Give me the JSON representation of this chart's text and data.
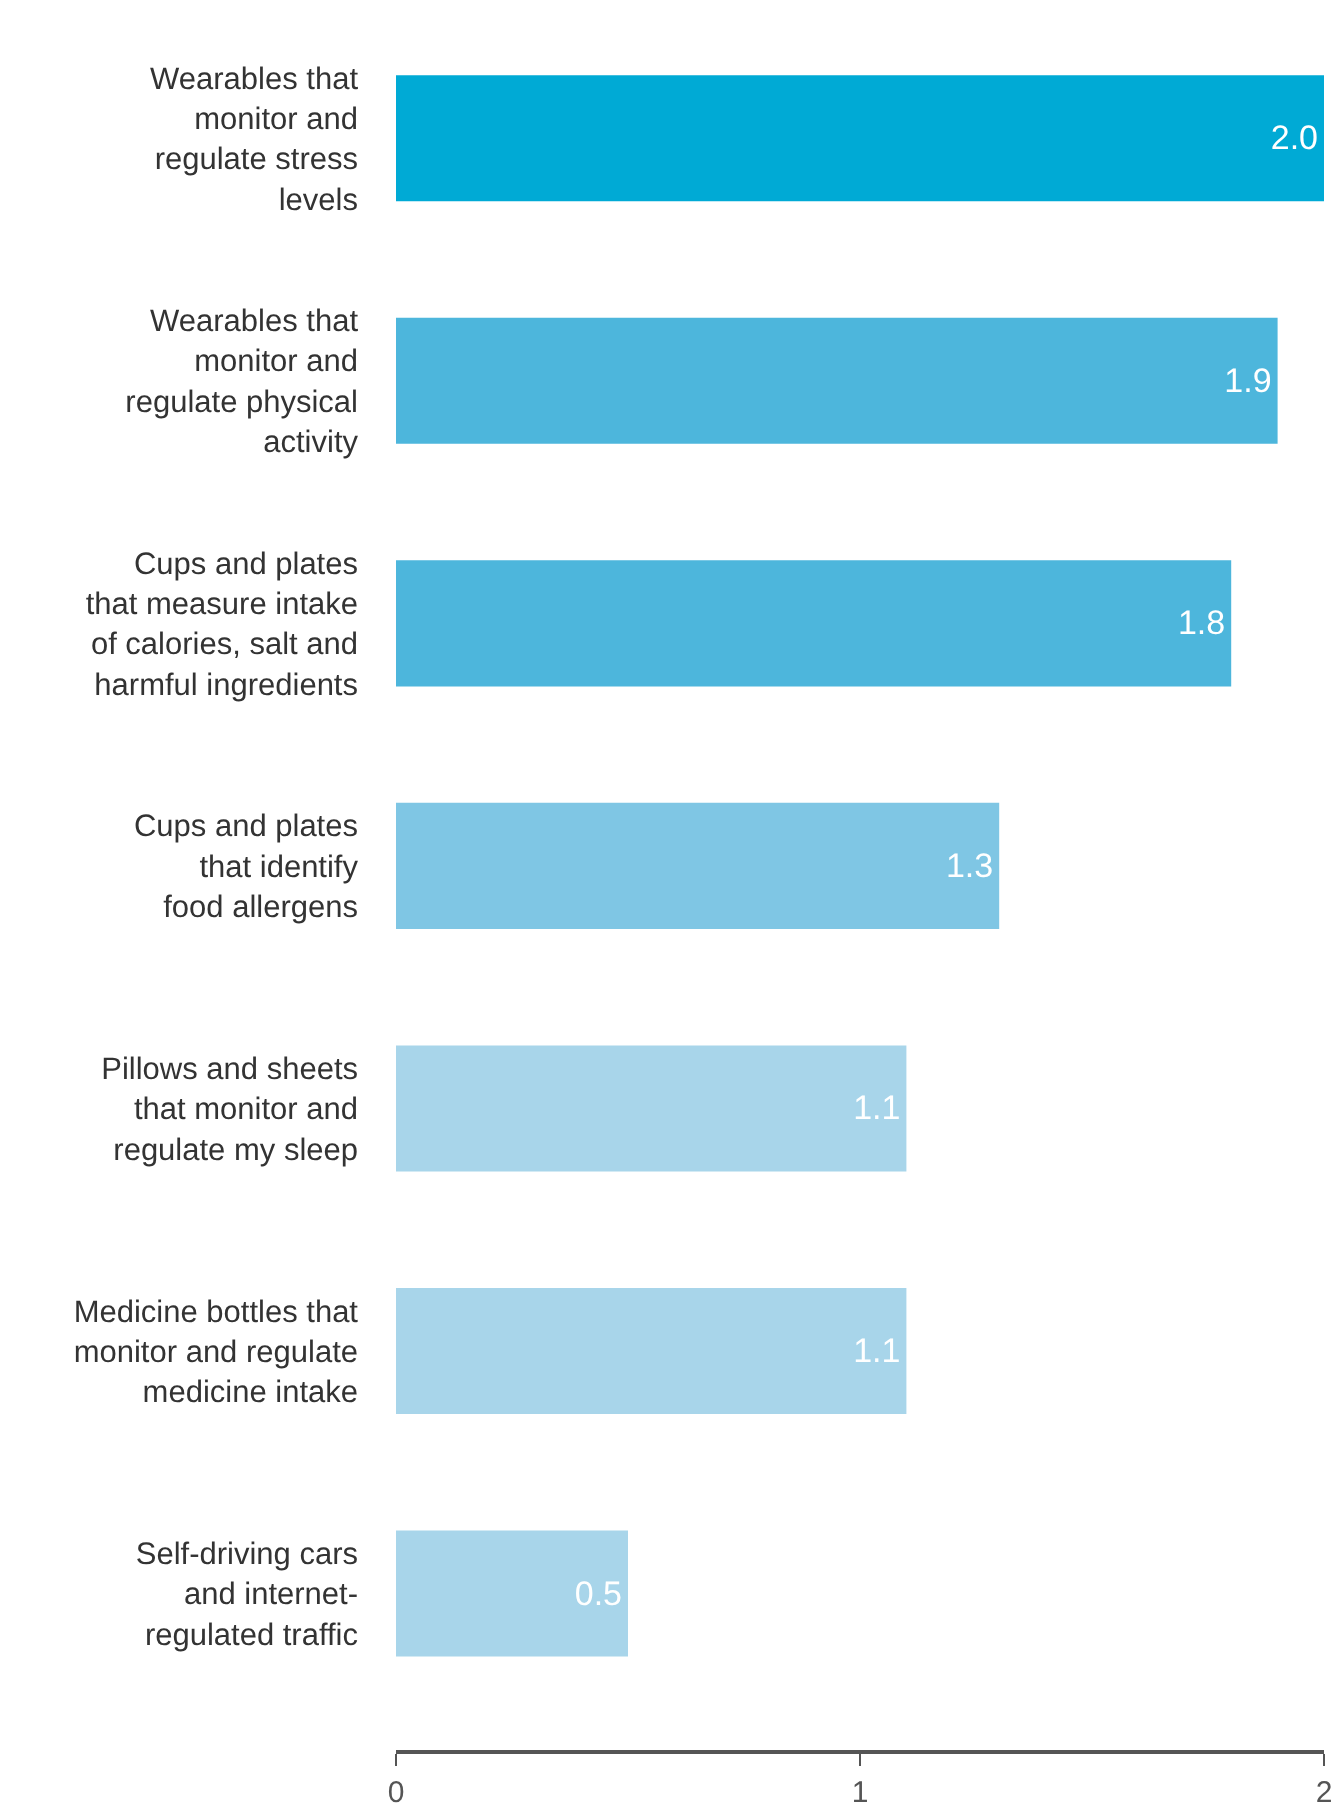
{
  "chart_data": {
    "type": "bar",
    "orientation": "horizontal",
    "categories": [
      "Wearables that\nmonitor and\nregulate stress\nlevels",
      "Wearables that\nmonitor and\nregulate physical\nactivity",
      "Cups and plates\nthat measure intake\nof calories, salt and\nharmful ingredients",
      "Cups and plates\nthat identify\nfood allergens",
      "Pillows and sheets\nthat monitor and\nregulate my sleep",
      "Medicine bottles that\nmonitor and regulate\nmedicine intake",
      "Self-driving cars\nand internet-\nregulated traffic"
    ],
    "values": [
      2.0,
      1.9,
      1.8,
      1.3,
      1.1,
      1.1,
      0.5
    ],
    "value_labels": [
      "2.0",
      "1.9",
      "1.8",
      "1.3",
      "1.1",
      "1.1",
      "0.5"
    ],
    "colors": [
      "#00aad5",
      "#4db6dc",
      "#4db6dc",
      "#7fc6e4",
      "#a8d5ea",
      "#a8d5ea",
      "#a8d5ea"
    ],
    "xlim": [
      0,
      2
    ],
    "xticks": [
      0,
      1,
      2
    ],
    "tick_labels": "x",
    "legend": false
  }
}
